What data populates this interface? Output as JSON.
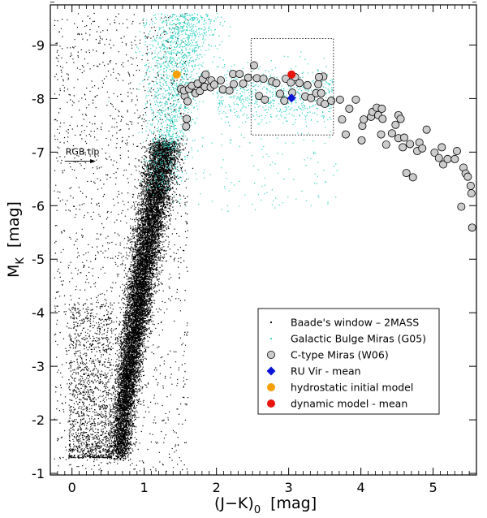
{
  "chart_data": {
    "type": "scatter",
    "title": "",
    "xlabel": {
      "main": "(J−K)",
      "sub": "0",
      "unit": "[mag]"
    },
    "ylabel": {
      "main": "M",
      "sub": "K",
      "unit": "[mag]"
    },
    "xlim": [
      -0.3,
      5.6
    ],
    "ylim": [
      -0.97,
      -9.75
    ],
    "y_inverted": true,
    "x_ticks": [
      "0",
      "1",
      "2",
      "3",
      "4",
      "5"
    ],
    "x_tick_values": [
      0,
      1,
      2,
      3,
      4,
      5
    ],
    "y_ticks": [
      "-1",
      "-2",
      "-3",
      "-4",
      "-5",
      "-6",
      "-7",
      "-8",
      "-9"
    ],
    "y_tick_values": [
      -1,
      -2,
      -3,
      -4,
      -5,
      -6,
      -7,
      -8,
      -9
    ],
    "grid": false,
    "legend_position": "bottom-right",
    "annotations": [
      {
        "text": "RGB tip",
        "arrow_from": [
          -0.1,
          -6.83
        ],
        "arrow_to": [
          0.33,
          -6.83
        ]
      }
    ],
    "highlight_box": {
      "x": [
        2.48,
        3.62
      ],
      "y": [
        -7.32,
        -9.12
      ],
      "style": "dotted"
    },
    "series": [
      {
        "name": "Baade's window – 2MASS",
        "marker": "dot",
        "color": "#000000",
        "distribution": [
          {
            "kind": "branch",
            "n": 14000,
            "y_range": [
              -1.3,
              -7.2
            ],
            "x_at_y_min": 0.66,
            "x_at_y_max": 1.28,
            "spread": [
              0.07,
              0.11
            ]
          },
          {
            "kind": "scatter",
            "n": 1700,
            "x_range": [
              -0.25,
              1.6
            ],
            "y_range": [
              -1.05,
              -9.6
            ]
          },
          {
            "kind": "faint-tail",
            "n": 1300,
            "x_range": [
              -0.05,
              0.55
            ],
            "y_range": [
              -1.3,
              -4.2
            ]
          }
        ]
      },
      {
        "name": "Galactic Bulge Miras (G05)",
        "marker": "dot",
        "color": "#2fd1c0",
        "distribution": [
          {
            "kind": "cloud",
            "n": 1500,
            "x_range": [
              1.0,
              2.2
            ],
            "y_range": [
              -6.0,
              -9.6
            ]
          },
          {
            "kind": "band",
            "n": 650,
            "x_range": [
              2.0,
              3.6
            ],
            "y_range": [
              -7.3,
              -8.7
            ]
          },
          {
            "kind": "sparse",
            "n": 120,
            "x_range": [
              1.3,
              3.7
            ],
            "y_range": [
              -5.9,
              -7.3
            ]
          }
        ]
      },
      {
        "name": "C-type Miras (W06)",
        "marker": "open-circle",
        "color": "#cccccc",
        "points": [
          [
            1.51,
            -8.18
          ],
          [
            1.56,
            -8.05
          ],
          [
            1.55,
            -8.15
          ],
          [
            1.6,
            -7.95
          ],
          [
            1.62,
            -8.18
          ],
          [
            1.59,
            -7.62
          ],
          [
            1.58,
            -7.48
          ],
          [
            1.66,
            -8.24
          ],
          [
            1.71,
            -8.1
          ],
          [
            1.74,
            -8.28
          ],
          [
            1.77,
            -8.14
          ],
          [
            1.81,
            -8.36
          ],
          [
            1.84,
            -8.22
          ],
          [
            1.85,
            -8.45
          ],
          [
            1.92,
            -8.21
          ],
          [
            1.93,
            -8.34
          ],
          [
            1.97,
            -8.26
          ],
          [
            2.06,
            -8.34
          ],
          [
            2.09,
            -8.17
          ],
          [
            2.18,
            -8.15
          ],
          [
            2.23,
            -8.46
          ],
          [
            2.24,
            -8.27
          ],
          [
            2.32,
            -8.46
          ],
          [
            2.37,
            -8.28
          ],
          [
            2.44,
            -8.39
          ],
          [
            2.52,
            -8.62
          ],
          [
            2.56,
            -8.38
          ],
          [
            2.59,
            -8.05
          ],
          [
            2.65,
            -8.37
          ],
          [
            2.67,
            -7.98
          ],
          [
            2.77,
            -8.32
          ],
          [
            2.83,
            -8.29
          ],
          [
            2.88,
            -8.09
          ],
          [
            2.94,
            -7.96
          ],
          [
            2.96,
            -8.37
          ],
          [
            3.03,
            -8.3
          ],
          [
            3.05,
            -8.11
          ],
          [
            3.09,
            -8.4
          ],
          [
            3.15,
            -8.29
          ],
          [
            3.23,
            -8.04
          ],
          [
            3.26,
            -8.25
          ],
          [
            3.31,
            -8.01
          ],
          [
            3.38,
            -8.1
          ],
          [
            3.41,
            -8.27
          ],
          [
            3.44,
            -7.94
          ],
          [
            3.48,
            -8.41
          ],
          [
            3.5,
            -7.9
          ],
          [
            3.59,
            -7.96
          ],
          [
            3.71,
            -7.98
          ],
          [
            3.74,
            -7.61
          ],
          [
            3.79,
            -7.33
          ],
          [
            3.84,
            -7.81
          ],
          [
            3.93,
            -7.98
          ],
          [
            4.02,
            -7.49
          ],
          [
            4.04,
            -7.61
          ],
          [
            4.14,
            -7.66
          ],
          [
            4.16,
            -7.75
          ],
          [
            4.22,
            -7.83
          ],
          [
            4.24,
            -7.69
          ],
          [
            4.28,
            -7.33
          ],
          [
            4.3,
            -7.62
          ],
          [
            4.35,
            -7.14
          ],
          [
            4.43,
            -7.35
          ],
          [
            4.48,
            -7.51
          ],
          [
            4.52,
            -7.26
          ],
          [
            4.52,
            -7.69
          ],
          [
            4.55,
            -7.62
          ],
          [
            4.58,
            -7.09
          ],
          [
            4.6,
            -7.27
          ],
          [
            4.63,
            -6.61
          ],
          [
            4.68,
            -7.15
          ],
          [
            4.72,
            -6.53
          ],
          [
            4.78,
            -7.02
          ],
          [
            4.81,
            -7.18
          ],
          [
            4.85,
            -7.07
          ],
          [
            4.91,
            -7.42
          ],
          [
            5.02,
            -6.99
          ],
          [
            5.08,
            -6.89
          ],
          [
            5.12,
            -7.09
          ],
          [
            5.14,
            -6.77
          ],
          [
            5.2,
            -6.87
          ],
          [
            5.3,
            -6.87
          ],
          [
            5.33,
            -7.02
          ],
          [
            5.39,
            -5.98
          ],
          [
            5.42,
            -6.71
          ],
          [
            5.45,
            -6.6
          ],
          [
            5.48,
            -6.54
          ],
          [
            5.52,
            -6.37
          ],
          [
            5.53,
            -6.23
          ],
          [
            5.54,
            -5.59
          ],
          [
            4.29,
            -7.81
          ],
          [
            3.45,
            -8.1
          ],
          [
            4.01,
            -7.22
          ],
          [
            3.42,
            -8.4
          ]
        ]
      },
      {
        "name": "RU Vir - mean",
        "marker": "diamond",
        "color": "#0a14d6",
        "points": [
          [
            3.04,
            -8.01
          ]
        ]
      },
      {
        "name": "hydrostatic initial model",
        "marker": "circle",
        "color": "#f5a000",
        "points": [
          [
            1.45,
            -8.45
          ]
        ]
      },
      {
        "name": "dynamic model - mean",
        "marker": "circle",
        "color": "#e8140e",
        "points": [
          [
            3.04,
            -8.45
          ]
        ]
      }
    ]
  }
}
